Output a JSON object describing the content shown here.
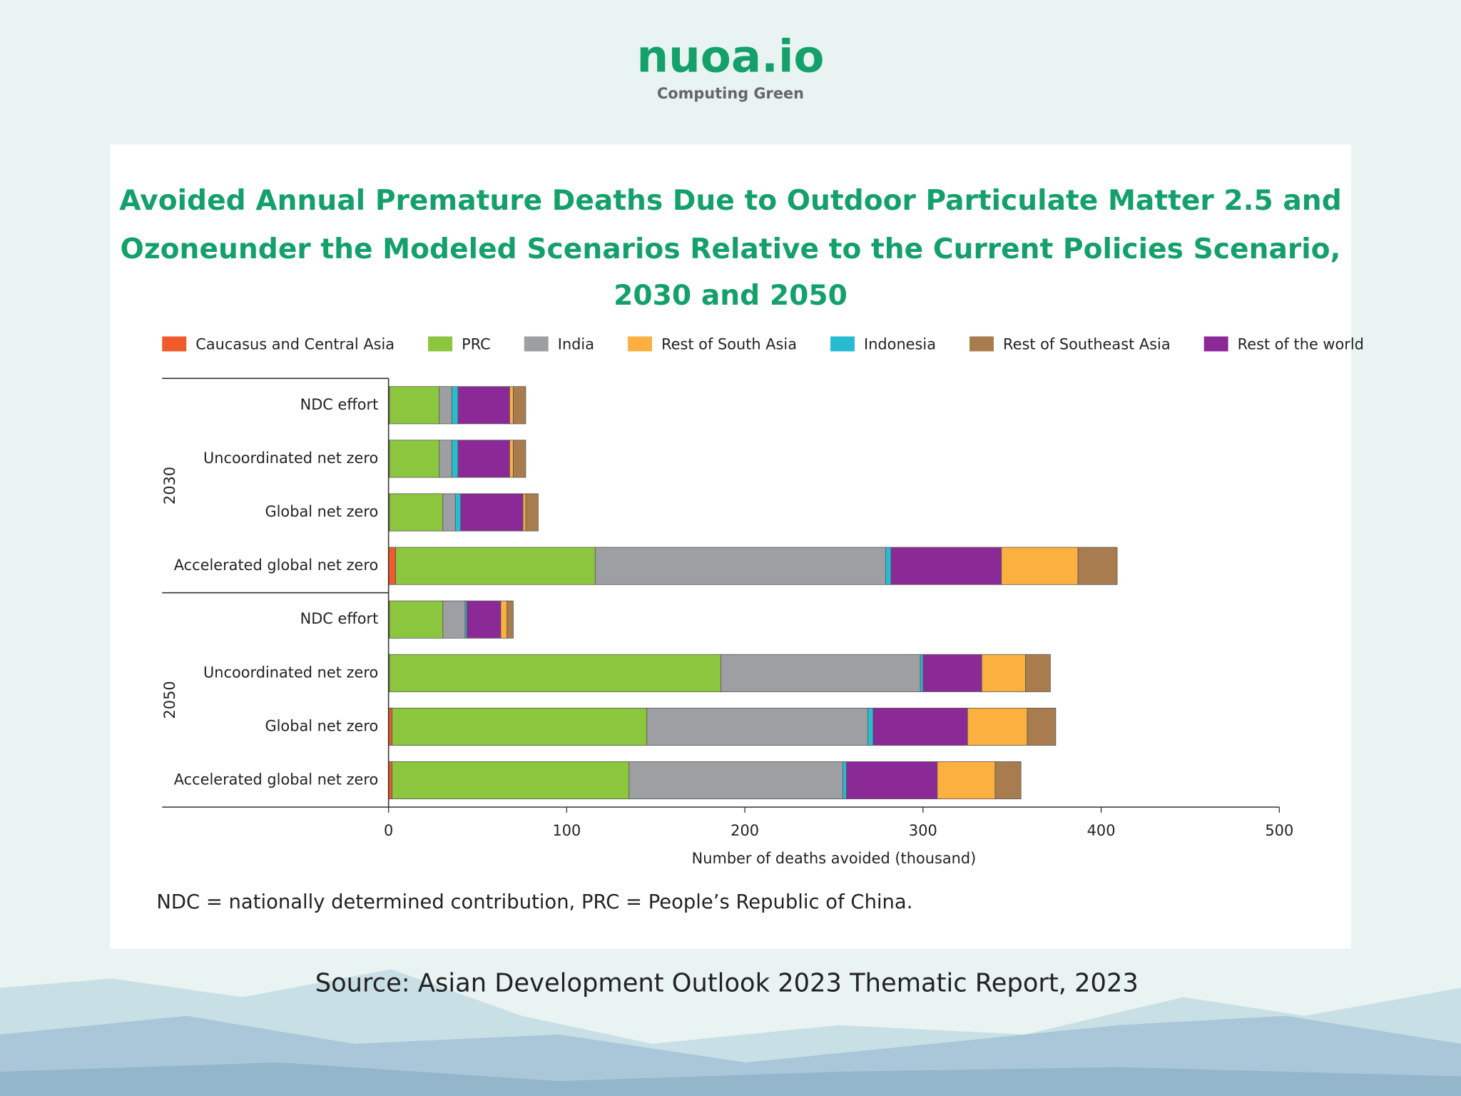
{
  "header": {
    "logo": "nuoa.io",
    "tagline": "Computing  Green"
  },
  "chart_data": {
    "type": "bar",
    "orientation": "horizontal",
    "stacked": true,
    "title": [
      "Avoided Annual Premature Deaths Due to Outdoor Particulate Matter 2.5 and",
      "Ozoneunder the Modeled Scenarios Relative to the Current Policies Scenario,",
      "2030 and 2050"
    ],
    "groups": [
      "2030",
      "2050"
    ],
    "categories": [
      "NDC effort",
      "Uncoordinated net zero",
      "Global net zero",
      "Accelerated global net zero",
      "NDC effort",
      "Uncoordinated net zero",
      "Global net zero",
      "Accelerated global net zero"
    ],
    "series": [
      {
        "name": "Caucasus and Central Asia",
        "color": "#f15a2b",
        "values": [
          0.5,
          0.5,
          0.5,
          4,
          0.5,
          0.5,
          2,
          2
        ]
      },
      {
        "name": "PRC",
        "color": "#8cc63f",
        "values": [
          28,
          28,
          30,
          112,
          30,
          186,
          143,
          133
        ]
      },
      {
        "name": "India",
        "color": "#9d9fa2",
        "values": [
          7,
          7,
          7,
          163,
          12.5,
          112,
          124,
          120
        ]
      },
      {
        "name": "Rest of South Asia",
        "color": "#fbb040",
        "values": [
          2,
          2,
          1.5,
          43,
          3.5,
          24.5,
          33.5,
          32.5
        ]
      },
      {
        "name": "Indonesia",
        "color": "#27bcd0",
        "values": [
          3.5,
          3.5,
          3,
          3,
          1,
          1.5,
          3,
          2
        ]
      },
      {
        "name": "Rest of Southeast Asia",
        "color": "#a97c50",
        "values": [
          7,
          7,
          7,
          22,
          3.5,
          14,
          16,
          14.5
        ]
      },
      {
        "name": "Rest of the world",
        "color": "#8b2a97",
        "values": [
          29,
          29,
          35,
          62,
          19,
          33,
          53,
          51
        ]
      }
    ],
    "xlim": [
      0,
      500
    ],
    "xticks": [
      0,
      100,
      200,
      300,
      400,
      500
    ],
    "xlabel": "Number of deaths avoided (thousand)",
    "note": "NDC = nationally determined contribution, PRC = People’s Republic of China.",
    "source": "Source: Asian Development Outlook 2023 Thematic Report, 2023"
  }
}
